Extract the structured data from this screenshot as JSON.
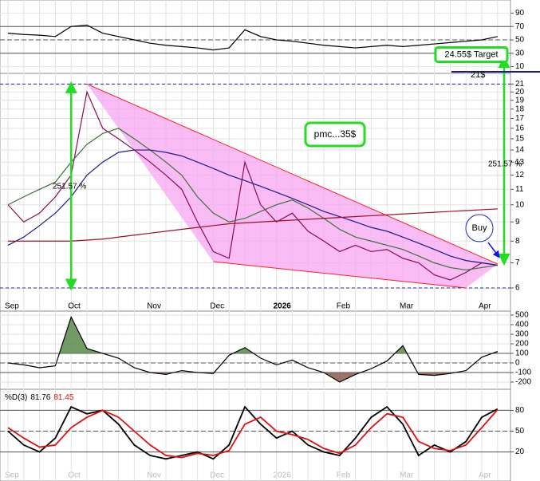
{
  "chart_data": [
    {
      "type": "line",
      "ylim": [
        0,
        100
      ],
      "yticks": [
        10,
        30,
        50,
        70,
        90
      ],
      "levels": [
        70,
        50,
        30
      ],
      "series": [
        {
          "color": "#000000",
          "values": [
            60,
            58,
            57,
            55,
            70,
            72,
            60,
            55,
            50,
            45,
            42,
            40,
            38,
            35,
            38,
            65,
            55,
            50,
            48,
            45,
            42,
            40,
            38,
            40,
            42,
            40,
            42,
            44,
            46,
            48,
            50,
            55
          ]
        }
      ]
    },
    {
      "type": "line",
      "log_scale": true,
      "ylim": [
        5.74,
        23.2
      ],
      "yticks": [
        6,
        7,
        8,
        9,
        10,
        11,
        12,
        13,
        14,
        15,
        16,
        17,
        18,
        19,
        20,
        21
      ],
      "categories": [
        "Sep",
        null,
        null,
        null,
        "Oct",
        null,
        null,
        null,
        null,
        "Nov",
        null,
        null,
        null,
        "Dec",
        null,
        null,
        null,
        "2026",
        null,
        null,
        null,
        "Feb",
        null,
        null,
        null,
        "Mar",
        null,
        null,
        null,
        null,
        "Apr",
        null
      ],
      "series": [
        {
          "color": "#8b0a50",
          "values": [
            10,
            9,
            9.5,
            10.5,
            12,
            20,
            16,
            15,
            14,
            13,
            12,
            11,
            9,
            7.5,
            7.2,
            13,
            10,
            9,
            9.5,
            8.5,
            8,
            7.5,
            7.8,
            7.5,
            7.6,
            7.2,
            7.0,
            6.5,
            6.3,
            6.6,
            7.0,
            6.9
          ]
        },
        {
          "color": "#3c6e3c",
          "values": [
            10,
            10.5,
            11,
            11.5,
            13,
            14.5,
            15.5,
            16,
            15,
            14,
            13,
            12,
            10.5,
            9.5,
            9,
            9.2,
            9.6,
            10,
            10.3,
            9.8,
            9.2,
            8.6,
            8.2,
            8.0,
            7.8,
            7.6,
            7.3,
            7.0,
            6.8,
            6.7,
            6.8,
            6.9
          ]
        },
        {
          "color": "#1a1a8c",
          "values": [
            7.8,
            8.2,
            8.8,
            9.5,
            10.5,
            12,
            13,
            13.8,
            14,
            14,
            13.8,
            13.5,
            13,
            12.5,
            12,
            11.6,
            11.2,
            10.8,
            10.4,
            10,
            9.6,
            9.3,
            9,
            8.7,
            8.5,
            8.2,
            7.9,
            7.6,
            7.3,
            7.1,
            7.0,
            6.9
          ]
        },
        {
          "color": "#a0102a",
          "values": [
            8.0,
            8.0,
            8.0,
            8.0,
            8.0,
            8.05,
            8.1,
            8.2,
            8.3,
            8.4,
            8.5,
            8.6,
            8.7,
            8.8,
            8.9,
            8.95,
            9.0,
            9.05,
            9.1,
            9.15,
            9.2,
            9.25,
            9.3,
            9.35,
            9.4,
            9.45,
            9.5,
            9.55,
            9.6,
            9.65,
            9.7,
            9.75
          ]
        }
      ],
      "levels": [
        21,
        6
      ],
      "trendlines": [
        {
          "color": "#ff2020",
          "x": [
            5,
            31
          ],
          "values": [
            21,
            6.95
          ]
        },
        {
          "color": "#ff2020",
          "x": [
            13,
            29
          ],
          "values": [
            7.05,
            6.0
          ]
        }
      ],
      "wedge_color": "#f7a6f2",
      "target": {
        "value": 24.55,
        "label": "24.55$ Target"
      },
      "annotations": [
        {
          "text": "251.57 %"
        },
        {
          "text": "251.57 %"
        },
        {
          "text": "21$"
        },
        {
          "text": "pmc...35$"
        },
        {
          "text": "Buy"
        }
      ]
    },
    {
      "type": "line",
      "ylim": [
        -250,
        550
      ],
      "yticks": [
        -200,
        -100,
        0,
        100,
        200,
        300,
        400,
        500
      ],
      "levels": [
        100,
        0,
        -100
      ],
      "fill": true,
      "series": [
        {
          "color": "#000000",
          "values": [
            0,
            -20,
            -50,
            -30,
            480,
            150,
            100,
            50,
            -50,
            -100,
            -120,
            -80,
            -100,
            -110,
            80,
            160,
            50,
            -20,
            30,
            -50,
            -100,
            -200,
            -120,
            -60,
            20,
            180,
            -120,
            -130,
            -110,
            -80,
            60,
            120
          ]
        }
      ]
    },
    {
      "type": "line",
      "title": "%D(3)",
      "legend_values": [
        81.76,
        81.45
      ],
      "ylim": [
        0,
        100
      ],
      "yticks": [
        20,
        50,
        80
      ],
      "levels": [
        80,
        50,
        20
      ],
      "series": [
        {
          "color": "#000000",
          "values": [
            50,
            30,
            20,
            40,
            85,
            75,
            80,
            60,
            30,
            15,
            10,
            15,
            20,
            10,
            30,
            85,
            60,
            40,
            50,
            30,
            20,
            15,
            40,
            70,
            85,
            60,
            15,
            30,
            20,
            35,
            70,
            82
          ]
        },
        {
          "color": "#e01010",
          "values": [
            55,
            40,
            27,
            30,
            55,
            70,
            80,
            70,
            50,
            30,
            15,
            12,
            18,
            15,
            22,
            60,
            70,
            50,
            45,
            38,
            25,
            18,
            30,
            55,
            75,
            70,
            35,
            25,
            22,
            30,
            55,
            81
          ]
        }
      ]
    }
  ]
}
